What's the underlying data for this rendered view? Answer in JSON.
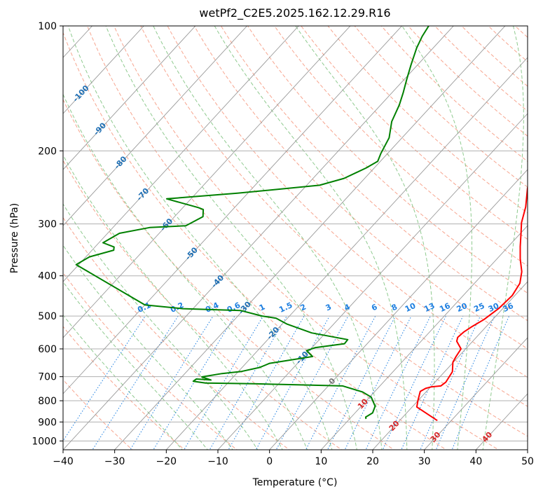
{
  "chart_data": {
    "type": "line",
    "title": "wetPf2_C2E5.2025.162.12.29.R16",
    "xlabel": "Temperature (°C)",
    "ylabel": "Pressure (hPa)",
    "xlim": [
      -40,
      50
    ],
    "ylim": [
      1050,
      100
    ],
    "y_scale": "log",
    "x_ticks": [
      "−40",
      "−30",
      "−20",
      "−10",
      "0",
      "10",
      "20",
      "30",
      "40",
      "50"
    ],
    "y_ticks": [
      "100",
      "200",
      "300",
      "400",
      "500",
      "600",
      "700",
      "800",
      "900",
      "1000"
    ],
    "grid": true,
    "series": [
      {
        "color": "#ff0000",
        "points": [
          [
            27.3,
            893
          ],
          [
            20.9,
            828
          ],
          [
            19.9,
            797
          ],
          [
            18.8,
            760
          ],
          [
            19.3,
            747
          ],
          [
            20.1,
            741
          ],
          [
            21.8,
            737
          ],
          [
            22.1,
            722
          ],
          [
            21.5,
            681
          ],
          [
            19.9,
            646
          ],
          [
            19.5,
            626
          ],
          [
            19.1,
            600
          ],
          [
            16.9,
            575
          ],
          [
            16.4,
            563
          ],
          [
            16.6,
            547
          ],
          [
            17.3,
            529
          ],
          [
            18.3,
            510
          ],
          [
            19.2,
            479
          ],
          [
            19.5,
            446
          ],
          [
            18.8,
            417
          ],
          [
            17.1,
            391
          ],
          [
            14.5,
            364
          ],
          [
            12.3,
            340
          ],
          [
            9.9,
            314
          ],
          [
            8.3,
            298
          ],
          [
            6.3,
            273
          ],
          [
            3.3,
            246
          ],
          [
            0.9,
            220
          ],
          [
            -0.3,
            205
          ],
          [
            -1.3,
            188
          ],
          [
            -1.8,
            168
          ],
          [
            -2.5,
            154
          ],
          [
            -3.5,
            140
          ],
          [
            -5.5,
            126
          ],
          [
            -7.0,
            117
          ],
          [
            -7.5,
            110
          ],
          [
            -6.0,
            103
          ],
          [
            -5.3,
            100
          ]
        ]
      },
      {
        "color": "#008000",
        "points": [
          [
            13.2,
            885
          ],
          [
            12.8,
            876
          ],
          [
            13.4,
            856
          ],
          [
            12.7,
            825
          ],
          [
            10.3,
            784
          ],
          [
            7.7,
            762
          ],
          [
            2.8,
            737
          ],
          [
            -4.8,
            733
          ],
          [
            -14.9,
            728
          ],
          [
            -24.3,
            725
          ],
          [
            -27.0,
            718
          ],
          [
            -26.8,
            709
          ],
          [
            -23.8,
            713
          ],
          [
            -26.1,
            701
          ],
          [
            -22.8,
            688
          ],
          [
            -19.4,
            680
          ],
          [
            -16.6,
            665
          ],
          [
            -15.4,
            650
          ],
          [
            -8.3,
            626
          ],
          [
            -10.5,
            606
          ],
          [
            -9.4,
            596
          ],
          [
            -4.4,
            583
          ],
          [
            -4.5,
            570
          ],
          [
            -12.7,
            549
          ],
          [
            -19.0,
            523
          ],
          [
            -22.2,
            506
          ],
          [
            -25.3,
            500
          ],
          [
            -30.4,
            485
          ],
          [
            -42.0,
            480
          ],
          [
            -50.0,
            470
          ],
          [
            -70.5,
            376
          ],
          [
            -69.3,
            360
          ],
          [
            -65.8,
            347
          ],
          [
            -66.3,
            341
          ],
          [
            -69.2,
            333
          ],
          [
            -67.7,
            316
          ],
          [
            -62.9,
            306
          ],
          [
            -56.2,
            303
          ],
          [
            -54.5,
            288
          ],
          [
            -55.7,
            277
          ],
          [
            -57.0,
            274
          ],
          [
            -64.7,
            261
          ],
          [
            -52.0,
            253
          ],
          [
            -37.5,
            242
          ],
          [
            -34.0,
            233
          ],
          [
            -31.6,
            220
          ],
          [
            -30.5,
            212
          ],
          [
            -31.3,
            203
          ],
          [
            -32.5,
            186
          ],
          [
            -34.9,
            170
          ],
          [
            -36.4,
            155
          ],
          [
            -37.8,
            145
          ],
          [
            -39.6,
            134
          ],
          [
            -41.3,
            124
          ],
          [
            -43.2,
            113
          ],
          [
            -44.2,
            106
          ],
          [
            -44.8,
            100
          ]
        ]
      }
    ],
    "isotherm_labels": [
      "-100",
      "-90",
      "-80",
      "-70",
      "-60",
      "-50",
      "-40",
      "-30",
      "-20",
      "-10",
      "0",
      "10",
      "20",
      "30",
      "40"
    ],
    "mixing_ratio_labels": [
      "0.1",
      "0.2",
      "0.4",
      "0.6",
      "1",
      "1.5",
      "2",
      "3",
      "4",
      "6",
      "8",
      "10",
      "13",
      "16",
      "20",
      "25",
      "30",
      "36"
    ],
    "colors": {
      "temperature": "#ff0000",
      "dewpoint": "#008000",
      "isotherm": "#9a9a9a",
      "dry_adiabat": "#f7a58f",
      "moist_adiabat": "#8fca8f",
      "mixing_ratio": "#1e7fe0",
      "isotherm_label_cold": "#1f6fb4",
      "isotherm_label_warm": "#d62728",
      "isotherm_label_zero": "#777777"
    }
  }
}
